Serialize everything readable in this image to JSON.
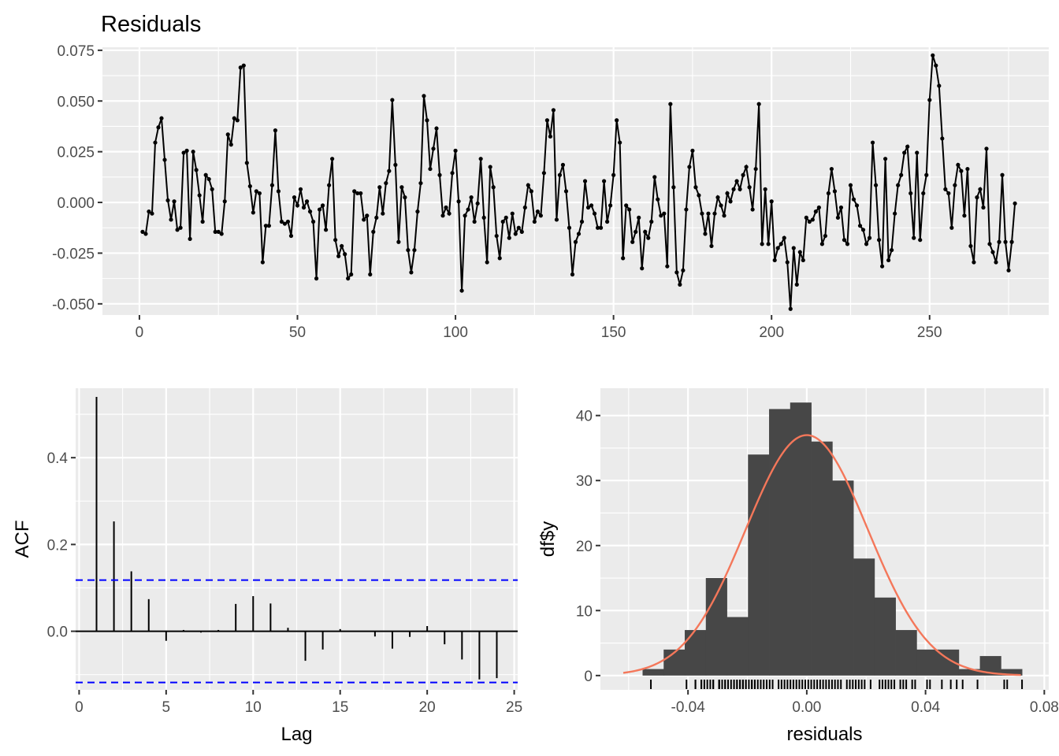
{
  "chart_data": [
    {
      "type": "line",
      "title": "Residuals",
      "xlabel": "",
      "ylabel": "",
      "xlim": [
        -11.7,
        287.7
      ],
      "ylim": [
        -0.0555,
        0.0765
      ],
      "xticks": [
        0,
        50,
        100,
        150,
        200,
        250
      ],
      "xtick_labels": [
        "0",
        "50",
        "100",
        "150",
        "200",
        "250"
      ],
      "yticks": [
        -0.05,
        -0.025,
        0.0,
        0.025,
        0.05,
        0.075
      ],
      "ytick_labels": [
        "-0.050",
        "-0.025",
        "0.000",
        "0.025",
        "0.050",
        "0.075"
      ],
      "x_start": 1,
      "grid": true,
      "points": true,
      "y": [
        -0.0145,
        -0.0155,
        -0.0045,
        -0.0055,
        0.0295,
        0.037,
        0.0415,
        0.021,
        0.001,
        -0.0085,
        0.0005,
        -0.0135,
        -0.0125,
        0.0245,
        0.0255,
        -0.018,
        0.025,
        0.016,
        0.0035,
        -0.0095,
        0.0135,
        0.0115,
        0.0065,
        -0.0145,
        -0.0145,
        -0.0155,
        0.0005,
        0.0335,
        0.0285,
        0.0415,
        0.0405,
        0.0665,
        0.0675,
        0.0195,
        0.008,
        -0.005,
        0.0055,
        0.0045,
        -0.0295,
        -0.0115,
        -0.0115,
        0.0085,
        0.0355,
        0.0055,
        -0.0095,
        -0.0105,
        -0.0095,
        -0.0165,
        0.0025,
        -0.0015,
        0.0065,
        -0.0025,
        0.0005,
        -0.0045,
        -0.0095,
        -0.0375,
        -0.0035,
        -0.0015,
        -0.0135,
        0.0085,
        0.0215,
        -0.0185,
        -0.0265,
        -0.0215,
        -0.0255,
        -0.0375,
        -0.0355,
        0.0055,
        0.0045,
        0.0045,
        -0.0085,
        -0.0065,
        -0.0355,
        -0.0145,
        -0.0075,
        0.0075,
        -0.0055,
        0.0095,
        0.0155,
        0.0505,
        0.0185,
        -0.0195,
        0.0075,
        0.0025,
        -0.0235,
        -0.0345,
        -0.0235,
        -0.0045,
        0.0095,
        0.0525,
        0.0405,
        0.0165,
        0.0265,
        0.0365,
        0.0135,
        -0.0065,
        -0.0025,
        -0.0055,
        0.0145,
        0.0255,
        0.0005,
        -0.0435,
        -0.0065,
        -0.0035,
        0.0025,
        -0.0095,
        -0.0005,
        0.0215,
        -0.0075,
        -0.0295,
        0.0175,
        0.0075,
        -0.0165,
        -0.0275,
        -0.0095,
        -0.0075,
        -0.0175,
        -0.0055,
        -0.0155,
        -0.0125,
        -0.0145,
        -0.0025,
        0.0085,
        0.0055,
        -0.0095,
        -0.0045,
        -0.0065,
        0.0145,
        0.0405,
        0.0325,
        0.0455,
        -0.0085,
        0.0135,
        0.0185,
        0.0055,
        -0.0125,
        -0.0355,
        -0.0195,
        -0.0155,
        -0.0095,
        0.0105,
        -0.0025,
        -0.0015,
        -0.0055,
        -0.0125,
        -0.0125,
        0.0105,
        -0.0095,
        -0.0015,
        0.0135,
        0.0405,
        0.0295,
        -0.0275,
        -0.0015,
        -0.0035,
        -0.0195,
        -0.0145,
        -0.0075,
        -0.0325,
        -0.0145,
        -0.0175,
        -0.0095,
        0.0125,
        0.0015,
        -0.0065,
        -0.0055,
        -0.0315,
        0.0485,
        0.0075,
        -0.0345,
        -0.0405,
        -0.0335,
        -0.0035,
        0.0175,
        0.0255,
        0.0075,
        0.0035,
        -0.0055,
        -0.0155,
        -0.0055,
        -0.0215,
        -0.0055,
        0.0025,
        -0.0015,
        -0.0065,
        0.0045,
        0.0005,
        0.0065,
        0.0105,
        0.0065,
        0.0135,
        0.0175,
        0.0075,
        -0.0035,
        0.0165,
        0.0485,
        -0.0205,
        0.0065,
        -0.0205,
        0.0005,
        -0.0285,
        -0.0225,
        -0.0205,
        -0.0175,
        -0.0295,
        -0.0525,
        -0.0225,
        -0.0405,
        -0.0245,
        -0.0285,
        -0.0075,
        -0.0095,
        -0.0085,
        -0.0045,
        -0.0025,
        -0.0205,
        -0.0165,
        0.0045,
        0.0165,
        0.0055,
        -0.0075,
        -0.0025,
        -0.0185,
        -0.0205,
        0.0085,
        0.0015,
        -0.0015,
        -0.0115,
        -0.0135,
        -0.0205,
        -0.0175,
        0.0295,
        0.0085,
        -0.0185,
        -0.0315,
        0.0215,
        -0.0285,
        -0.0235,
        -0.0055,
        0.0085,
        0.0135,
        0.0245,
        0.0275,
        0.0045,
        -0.0175,
        0.0245,
        -0.0185,
        0.0045,
        0.0135,
        0.0505,
        0.0725,
        0.0675,
        0.0575,
        0.0315,
        0.0065,
        0.0045,
        -0.0125,
        0.0085,
        0.0185,
        0.0155,
        -0.0065,
        0.0165,
        -0.0215,
        -0.0295,
        0.0025,
        0.0065,
        -0.0025,
        0.0265,
        -0.0205,
        -0.0245,
        -0.0295,
        -0.0195,
        0.0135,
        -0.0195,
        -0.0335,
        -0.0195,
        -0.0005
      ]
    },
    {
      "type": "bar",
      "title": "",
      "xlabel": "Lag",
      "ylabel": "ACF",
      "xlim": [
        -0.2,
        25.2
      ],
      "ylim": [
        -0.135,
        0.56
      ],
      "xticks": [
        0,
        5,
        10,
        15,
        20,
        25
      ],
      "xtick_labels": [
        "0",
        "5",
        "10",
        "15",
        "20",
        "25"
      ],
      "yticks": [
        0.0,
        0.2,
        0.4
      ],
      "ytick_labels": [
        "0.0",
        "0.2",
        "0.4"
      ],
      "lags": [
        1,
        2,
        3,
        4,
        5,
        6,
        7,
        8,
        9,
        10,
        11,
        12,
        13,
        14,
        15,
        16,
        17,
        18,
        19,
        20,
        21,
        22,
        23,
        24
      ],
      "values": [
        0.54,
        0.253,
        0.138,
        0.074,
        -0.022,
        0.003,
        -0.003,
        0.003,
        0.063,
        0.081,
        0.064,
        0.008,
        -0.068,
        -0.042,
        0.005,
        -0.001,
        -0.012,
        -0.04,
        -0.013,
        0.012,
        -0.03,
        -0.065,
        -0.111,
        -0.108
      ],
      "confidence_bound": 0.118,
      "confidence_color": "#0000FF",
      "grid": true
    },
    {
      "type": "histogram",
      "title": "",
      "xlabel": "residuals",
      "ylabel": "df$y",
      "xlim": [
        -0.0695,
        0.0815
      ],
      "ylim": [
        -2.2,
        44.2
      ],
      "xticks": [
        -0.04,
        0.0,
        0.04,
        0.08
      ],
      "xtick_labels": [
        "-0.04",
        "0.00",
        "0.04",
        "0.08"
      ],
      "yticks": [
        0,
        10,
        20,
        30,
        40
      ],
      "ytick_labels": [
        "0",
        "10",
        "20",
        "30",
        "40"
      ],
      "bin_width": 0.0071,
      "bin_start": -0.0553,
      "counts": [
        1,
        4,
        7,
        15,
        9,
        34,
        41,
        42,
        36,
        30,
        18,
        12,
        7,
        4,
        4,
        1,
        3,
        1
      ],
      "bar_color": "#474747",
      "density_curve": {
        "mean": 0.0,
        "sd": 0.0206,
        "color": "#F4775A"
      },
      "rug": [
        -0.0525,
        -0.0405,
        -0.0375,
        -0.0375,
        -0.0355,
        -0.0355,
        -0.0345,
        -0.0335,
        -0.0325,
        -0.0315,
        -0.0315,
        -0.0295,
        -0.0295,
        -0.0295,
        -0.0295,
        -0.0285,
        -0.0285,
        -0.0275,
        -0.0275,
        -0.0265,
        -0.0255,
        -0.0245,
        -0.0245,
        -0.0235,
        -0.0235,
        -0.0225,
        -0.0225,
        -0.0215,
        -0.0215,
        -0.0215,
        -0.0205,
        -0.0205,
        -0.0195,
        -0.0185,
        -0.0185,
        -0.0175,
        -0.0175,
        -0.0165,
        -0.0155,
        -0.0145,
        -0.0135,
        -0.0125,
        -0.0115,
        -0.0095,
        -0.0085,
        -0.0075,
        -0.0065,
        -0.0055,
        -0.0045,
        -0.0035,
        -0.0025,
        -0.0015,
        -0.0005,
        0.0005,
        0.0015,
        0.0025,
        0.0035,
        0.0045,
        0.0055,
        0.0065,
        0.0075,
        0.0085,
        0.0095,
        0.0105,
        0.0115,
        0.0135,
        0.0145,
        0.0155,
        0.0165,
        0.0175,
        0.0185,
        0.0195,
        0.0215,
        0.0245,
        0.0255,
        0.0265,
        0.0275,
        0.0285,
        0.0295,
        0.0315,
        0.0325,
        0.0335,
        0.0355,
        0.0365,
        0.0405,
        0.0415,
        0.0455,
        0.0485,
        0.0505,
        0.0525,
        0.0575,
        0.0665,
        0.0675,
        0.0725
      ],
      "grid": true
    }
  ]
}
